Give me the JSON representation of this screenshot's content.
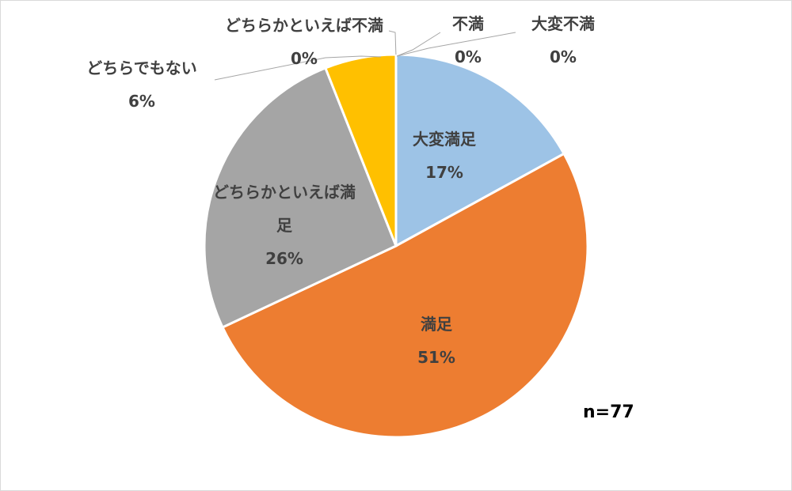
{
  "chart_data": {
    "type": "pie",
    "categories": [
      "大変満足",
      "満足",
      "どちらかといえば満足",
      "どちらでもない",
      "どちらかといえば不満",
      "不満",
      "大変不満"
    ],
    "values": [
      17,
      51,
      26,
      6,
      0,
      0,
      0
    ],
    "value_labels": [
      "17%",
      "51%",
      "26%",
      "6%",
      "0%",
      "0%",
      "0%"
    ],
    "colors": [
      "#9dc3e6",
      "#ed7d31",
      "#a5a5a5",
      "#ffc000",
      "#5b9bd5",
      "#70ad47",
      "#264478"
    ],
    "annotation": "n=77"
  }
}
